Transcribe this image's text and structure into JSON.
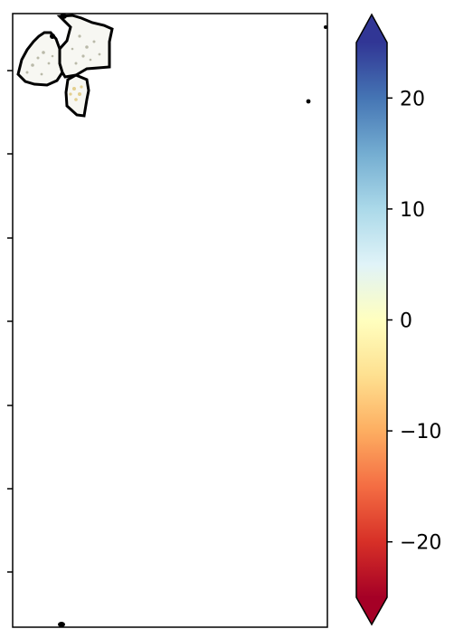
{
  "chart_data": [
    {
      "type": "map",
      "title": "",
      "xlabel": "",
      "ylabel": "",
      "y_tick_labels": [
        "",
        "",
        "",
        "",
        "",
        "",
        ""
      ],
      "regions": [
        {
          "id": "region-west",
          "has_data": true
        },
        {
          "id": "region-east",
          "has_data": true
        },
        {
          "id": "region-south",
          "has_data": true
        }
      ]
    },
    {
      "type": "colorbar",
      "range": [
        -25,
        25
      ],
      "extend": "both",
      "ticks": [
        20,
        10,
        0,
        -10,
        -20
      ],
      "tick_labels": [
        "20",
        "10",
        "0",
        "−10",
        "−20"
      ],
      "colormap": "RdYlBu",
      "colors": [
        "#a50026",
        "#d73027",
        "#f46d43",
        "#fdae61",
        "#fee090",
        "#ffffbf",
        "#e0f3f8",
        "#abd9e9",
        "#74add1",
        "#4575b4",
        "#313695"
      ]
    }
  ]
}
